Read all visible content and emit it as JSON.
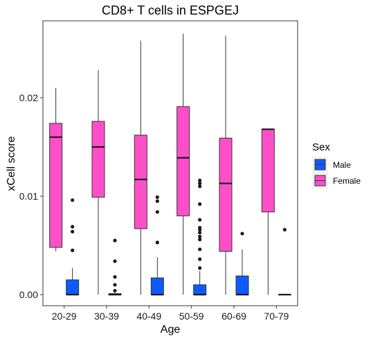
{
  "chart_data": {
    "type": "box",
    "title": "CD8+ T cells in ESPGEJ",
    "xlabel": "Age",
    "ylabel": "xCell score",
    "ylim": [
      -0.001,
      0.0285
    ],
    "y_ticks": [
      {
        "value": 0.0,
        "label": "0.00"
      },
      {
        "value": 0.01,
        "label": "0.01"
      },
      {
        "value": 0.02,
        "label": "0.02"
      }
    ],
    "categories": [
      "20-29",
      "30-39",
      "40-49",
      "50-59",
      "60-69",
      "70-79"
    ],
    "grid": false,
    "legend": {
      "title": "Sex",
      "position": "right",
      "entries": [
        {
          "name": "Male",
          "color": "#0D5BFF"
        },
        {
          "name": "Female",
          "color": "#FF4FC8"
        }
      ]
    },
    "series": [
      {
        "name": "Female",
        "color": "#FF4FC8",
        "boxes": [
          {
            "category": "20-29",
            "whisker_low": 0.0044,
            "q1": 0.0048,
            "median": 0.016,
            "q3": 0.0174,
            "whisker_high": 0.021,
            "outliers": []
          },
          {
            "category": "30-39",
            "whisker_low": 0.0,
            "q1": 0.0099,
            "median": 0.015,
            "q3": 0.0176,
            "whisker_high": 0.0228,
            "outliers": []
          },
          {
            "category": "40-49",
            "whisker_low": 0.0,
            "q1": 0.0067,
            "median": 0.0117,
            "q3": 0.0162,
            "whisker_high": 0.0258,
            "outliers": []
          },
          {
            "category": "50-59",
            "whisker_low": 0.0,
            "q1": 0.008,
            "median": 0.0139,
            "q3": 0.0191,
            "whisker_high": 0.0265,
            "outliers": []
          },
          {
            "category": "60-69",
            "whisker_low": 0.0,
            "q1": 0.0044,
            "median": 0.0113,
            "q3": 0.0159,
            "whisker_high": 0.0263,
            "outliers": []
          },
          {
            "category": "70-79",
            "whisker_low": 0.0,
            "q1": 0.0084,
            "median": 0.0168,
            "q3": 0.0168,
            "whisker_high": 0.0168,
            "outliers": []
          }
        ]
      },
      {
        "name": "Male",
        "color": "#0D5BFF",
        "boxes": [
          {
            "category": "20-29",
            "whisker_low": 0.0,
            "q1": 0.0,
            "median": 0.0,
            "q3": 0.0015,
            "whisker_high": 0.0027,
            "outliers": [
              0.0045,
              0.0064,
              0.0069,
              0.0096
            ]
          },
          {
            "category": "30-39",
            "whisker_low": 0.0,
            "q1": 0.0,
            "median": 0.0,
            "q3": 0.0001,
            "whisker_high": 0.0002,
            "outliers": [
              0.0004,
              0.001,
              0.0018,
              0.0034,
              0.0055
            ]
          },
          {
            "category": "40-49",
            "whisker_low": 0.0,
            "q1": 0.0,
            "median": 0.0,
            "q3": 0.0017,
            "whisker_high": 0.0038,
            "outliers": [
              0.0053,
              0.0084,
              0.0095,
              0.0099
            ]
          },
          {
            "category": "50-59",
            "whisker_low": 0.0,
            "q1": 0.0,
            "median": 0.0,
            "q3": 0.001,
            "whisker_high": 0.0024,
            "outliers": [
              0.0027,
              0.0036,
              0.0046,
              0.0056,
              0.0059,
              0.0063,
              0.0066,
              0.0068,
              0.0076,
              0.0092,
              0.011,
              0.0113,
              0.0116
            ]
          },
          {
            "category": "60-69",
            "whisker_low": 0.0,
            "q1": 0.0,
            "median": 0.0,
            "q3": 0.0019,
            "whisker_high": 0.0046,
            "outliers": [
              0.0062
            ]
          },
          {
            "category": "70-79",
            "whisker_low": 0.0,
            "q1": 0.0,
            "median": 0.0,
            "q3": 0.0,
            "whisker_high": 0.0,
            "outliers": [
              0.0066
            ]
          }
        ]
      }
    ]
  }
}
